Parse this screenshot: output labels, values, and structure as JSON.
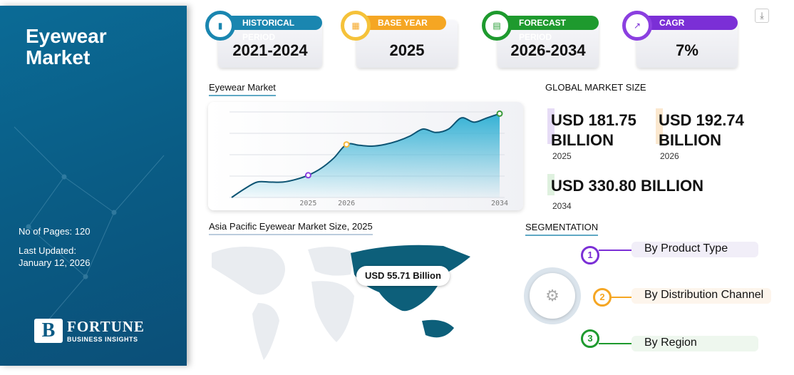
{
  "sidebar": {
    "title_line1": "Eyewear",
    "title_line2": "Market",
    "pages": "No of Pages: 120",
    "updated_label": "Last Updated:",
    "updated_date": "January 12, 2026",
    "logo_line1": "FORTUNE",
    "logo_line2": "BUSINESS INSIGHTS"
  },
  "cards": [
    {
      "label": "HISTORICAL PERIOD",
      "value": "2021-2024",
      "color": "#1a86b0",
      "icon": "bar-chart-icon"
    },
    {
      "label": "BASE YEAR",
      "value": "2025",
      "color": "#f5a623",
      "icon": "calendar-icon"
    },
    {
      "label": "FORECAST PERIOD",
      "value": "2026-2034",
      "color": "#1e9a2e",
      "icon": "forecast-chart-icon"
    },
    {
      "label": "CAGR",
      "value": "7%",
      "color": "#7b2fd6",
      "icon": "growth-chart-icon"
    }
  ],
  "download_icon": "download-icon",
  "chart_section_title": "Eyewear Market",
  "chart_data": {
    "type": "area",
    "title": "Eyewear Market",
    "x_tick_labels": [
      "2025",
      "2026",
      "2034"
    ],
    "x_tick_index": [
      6,
      9,
      21
    ],
    "values": [
      0,
      10,
      18,
      18,
      18,
      21,
      26,
      34,
      46,
      62,
      61,
      60,
      62,
      66,
      72,
      80,
      76,
      80,
      93,
      88,
      93,
      98
    ],
    "grid": true,
    "highlight_colors": [
      "#8b3fe0",
      "#f5b73a",
      "#3a9a3a"
    ],
    "line_color": "#0d5473",
    "fill_color": "#2aaed3"
  },
  "global": {
    "title": "GLOBAL MARKET SIZE",
    "v2025": "USD 181.75",
    "u2025": "BILLION",
    "y2025": "2025",
    "v2026": "USD 192.74",
    "u2026": "BILLION",
    "y2026": "2026",
    "v2034": "USD 330.80 BILLION",
    "y2034": "2034"
  },
  "map": {
    "title": "Asia Pacific Eyewear Market Size, 2025",
    "label": "USD 55.71 Billion",
    "highlight": "#0d5f7a"
  },
  "segmentation": {
    "title": "SEGMENTATION",
    "items": [
      {
        "num": "1",
        "label": "By Product Type",
        "color": "#7b2fd6"
      },
      {
        "num": "2",
        "label": "By Distribution Channel",
        "color": "#f5a623"
      },
      {
        "num": "3",
        "label": "By Region",
        "color": "#1e9a2e"
      }
    ]
  }
}
